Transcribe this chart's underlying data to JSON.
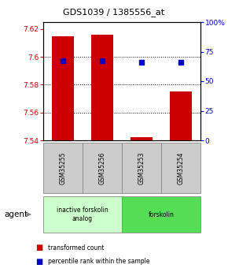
{
  "title": "GDS1039 / 1385556_at",
  "samples": [
    "GSM35255",
    "GSM35256",
    "GSM35253",
    "GSM35254"
  ],
  "bar_values": [
    7.615,
    7.616,
    7.542,
    7.575
  ],
  "dot_values": [
    7.597,
    7.597,
    7.596,
    7.596
  ],
  "ylim": [
    7.54,
    7.625
  ],
  "yticks_left": [
    7.54,
    7.56,
    7.58,
    7.6,
    7.62
  ],
  "ytick_labels_left": [
    "7.54",
    "7.56",
    "7.58",
    "7.6",
    "7.62"
  ],
  "yticks_right_pct": [
    0,
    25,
    50,
    75,
    100
  ],
  "ytick_labels_right": [
    "0",
    "25",
    "50",
    "75",
    "100%"
  ],
  "bar_color": "#cc0000",
  "dot_color": "#0000cc",
  "groups": [
    {
      "label": "inactive forskolin\nanalog",
      "color": "#ccffcc",
      "span_color": "#99ee99",
      "start": 0,
      "end": 2
    },
    {
      "label": "forskolin",
      "color": "#55dd55",
      "start": 2,
      "end": 4
    }
  ],
  "agent_label": "agent",
  "legend_red": "transformed count",
  "legend_blue": "percentile rank within the sample",
  "bar_color_legend": "#cc0000",
  "dot_color_legend": "#0000cc",
  "bar_width": 0.55,
  "xlim": [
    -0.5,
    3.5
  ]
}
